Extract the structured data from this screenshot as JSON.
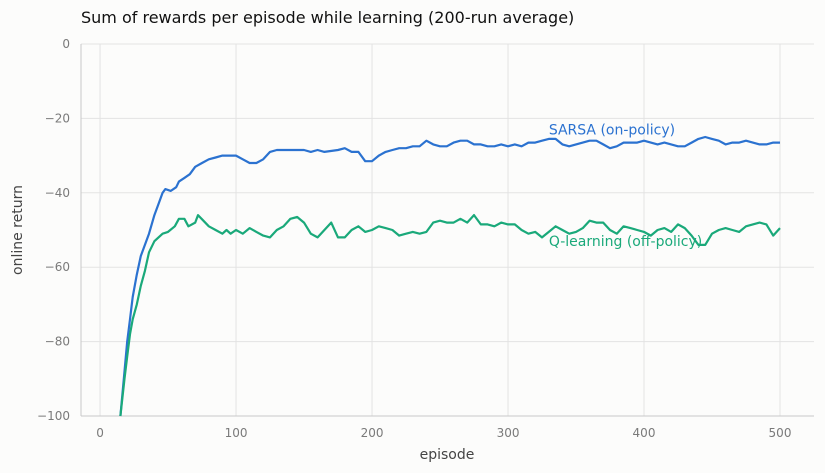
{
  "chart_data": {
    "type": "line",
    "title": "Sum of rewards per episode while learning (200-run average)",
    "xlabel": "episode",
    "ylabel": "online return",
    "xlim": [
      -14,
      525
    ],
    "ylim": [
      -100,
      0
    ],
    "xticks": [
      0,
      100,
      200,
      300,
      400,
      500
    ],
    "yticks": [
      0,
      -20,
      -40,
      -60,
      -80,
      -100
    ],
    "grid": true,
    "legend": "none",
    "annotations": [
      {
        "text": "SARSA (on-policy)",
        "series": "SARSA (on-policy)",
        "x": 330,
        "y": -23
      },
      {
        "text": "Q-learning (off-policy)",
        "series": "Q-learning (off-policy)",
        "x": 330,
        "y": -53
      }
    ],
    "series": [
      {
        "name": "SARSA (on-policy)",
        "color": "#2b72d0",
        "points": [
          [
            15,
            -100
          ],
          [
            18,
            -88
          ],
          [
            20,
            -80
          ],
          [
            22,
            -74
          ],
          [
            24,
            -68
          ],
          [
            27,
            -62
          ],
          [
            30,
            -57
          ],
          [
            33,
            -54
          ],
          [
            36,
            -51
          ],
          [
            40,
            -46
          ],
          [
            43,
            -43
          ],
          [
            46,
            -40
          ],
          [
            48,
            -39
          ],
          [
            52,
            -39.5
          ],
          [
            56,
            -38.5
          ],
          [
            58,
            -37
          ],
          [
            62,
            -36
          ],
          [
            66,
            -35
          ],
          [
            70,
            -33
          ],
          [
            75,
            -32
          ],
          [
            80,
            -31
          ],
          [
            85,
            -30.5
          ],
          [
            90,
            -30
          ],
          [
            95,
            -30
          ],
          [
            100,
            -30
          ],
          [
            105,
            -31
          ],
          [
            110,
            -32
          ],
          [
            115,
            -32
          ],
          [
            120,
            -31
          ],
          [
            125,
            -29
          ],
          [
            130,
            -28.5
          ],
          [
            140,
            -28.5
          ],
          [
            150,
            -28.5
          ],
          [
            155,
            -29
          ],
          [
            160,
            -28.5
          ],
          [
            165,
            -29
          ],
          [
            175,
            -28.5
          ],
          [
            180,
            -28
          ],
          [
            185,
            -29
          ],
          [
            190,
            -29
          ],
          [
            195,
            -31.5
          ],
          [
            200,
            -31.5
          ],
          [
            205,
            -30
          ],
          [
            210,
            -29
          ],
          [
            215,
            -28.5
          ],
          [
            220,
            -28
          ],
          [
            225,
            -28
          ],
          [
            230,
            -27.5
          ],
          [
            235,
            -27.5
          ],
          [
            240,
            -26
          ],
          [
            245,
            -27
          ],
          [
            250,
            -27.5
          ],
          [
            255,
            -27.5
          ],
          [
            260,
            -26.5
          ],
          [
            265,
            -26
          ],
          [
            270,
            -26
          ],
          [
            275,
            -27
          ],
          [
            280,
            -27
          ],
          [
            285,
            -27.5
          ],
          [
            290,
            -27.5
          ],
          [
            295,
            -27
          ],
          [
            300,
            -27.5
          ],
          [
            305,
            -27
          ],
          [
            310,
            -27.5
          ],
          [
            315,
            -26.5
          ],
          [
            320,
            -26.5
          ],
          [
            325,
            -26
          ],
          [
            330,
            -25.5
          ],
          [
            335,
            -25.5
          ],
          [
            340,
            -27
          ],
          [
            345,
            -27.5
          ],
          [
            350,
            -27
          ],
          [
            355,
            -26.5
          ],
          [
            360,
            -26
          ],
          [
            365,
            -26
          ],
          [
            370,
            -27
          ],
          [
            375,
            -28
          ],
          [
            380,
            -27.5
          ],
          [
            385,
            -26.5
          ],
          [
            390,
            -26.5
          ],
          [
            395,
            -26.5
          ],
          [
            400,
            -26
          ],
          [
            405,
            -26.5
          ],
          [
            410,
            -27
          ],
          [
            415,
            -26.5
          ],
          [
            420,
            -27
          ],
          [
            425,
            -27.5
          ],
          [
            430,
            -27.5
          ],
          [
            435,
            -26.5
          ],
          [
            440,
            -25.5
          ],
          [
            445,
            -25
          ],
          [
            450,
            -25.5
          ],
          [
            455,
            -26
          ],
          [
            460,
            -27
          ],
          [
            465,
            -26.5
          ],
          [
            470,
            -26.5
          ],
          [
            475,
            -26
          ],
          [
            480,
            -26.5
          ],
          [
            485,
            -27
          ],
          [
            490,
            -27
          ],
          [
            495,
            -26.5
          ],
          [
            500,
            -26.5
          ]
        ]
      },
      {
        "name": "Q-learning (off-policy)",
        "color": "#1aa97a",
        "points": [
          [
            15,
            -100
          ],
          [
            18,
            -90
          ],
          [
            20,
            -84
          ],
          [
            22,
            -78
          ],
          [
            24,
            -74
          ],
          [
            27,
            -70
          ],
          [
            30,
            -65
          ],
          [
            33,
            -61
          ],
          [
            36,
            -56
          ],
          [
            40,
            -53
          ],
          [
            43,
            -52
          ],
          [
            46,
            -51
          ],
          [
            50,
            -50.5
          ],
          [
            55,
            -49
          ],
          [
            58,
            -47
          ],
          [
            62,
            -47
          ],
          [
            65,
            -49
          ],
          [
            70,
            -48
          ],
          [
            72,
            -46
          ],
          [
            76,
            -47.5
          ],
          [
            80,
            -49
          ],
          [
            85,
            -50
          ],
          [
            90,
            -51
          ],
          [
            93,
            -50
          ],
          [
            96,
            -51
          ],
          [
            100,
            -50
          ],
          [
            105,
            -51
          ],
          [
            110,
            -49.5
          ],
          [
            115,
            -50.5
          ],
          [
            120,
            -51.5
          ],
          [
            125,
            -52
          ],
          [
            130,
            -50
          ],
          [
            135,
            -49
          ],
          [
            140,
            -47
          ],
          [
            145,
            -46.5
          ],
          [
            150,
            -48
          ],
          [
            155,
            -51
          ],
          [
            160,
            -52
          ],
          [
            165,
            -50
          ],
          [
            170,
            -48
          ],
          [
            175,
            -52
          ],
          [
            180,
            -52
          ],
          [
            185,
            -50
          ],
          [
            190,
            -49
          ],
          [
            195,
            -50.5
          ],
          [
            200,
            -50
          ],
          [
            205,
            -49
          ],
          [
            210,
            -49.5
          ],
          [
            215,
            -50
          ],
          [
            220,
            -51.5
          ],
          [
            225,
            -51
          ],
          [
            230,
            -50.5
          ],
          [
            235,
            -51
          ],
          [
            240,
            -50.5
          ],
          [
            245,
            -48
          ],
          [
            250,
            -47.5
          ],
          [
            255,
            -48
          ],
          [
            260,
            -48
          ],
          [
            265,
            -47
          ],
          [
            270,
            -48
          ],
          [
            275,
            -46
          ],
          [
            280,
            -48.5
          ],
          [
            285,
            -48.5
          ],
          [
            290,
            -49
          ],
          [
            295,
            -48
          ],
          [
            300,
            -48.5
          ],
          [
            305,
            -48.5
          ],
          [
            310,
            -50
          ],
          [
            315,
            -51
          ],
          [
            320,
            -50.5
          ],
          [
            325,
            -52
          ],
          [
            330,
            -50.5
          ],
          [
            335,
            -49
          ],
          [
            340,
            -50
          ],
          [
            345,
            -51
          ],
          [
            350,
            -50.5
          ],
          [
            355,
            -49.5
          ],
          [
            360,
            -47.5
          ],
          [
            365,
            -48
          ],
          [
            370,
            -48
          ],
          [
            375,
            -50
          ],
          [
            380,
            -51
          ],
          [
            385,
            -49
          ],
          [
            390,
            -49.5
          ],
          [
            395,
            -50
          ],
          [
            400,
            -50.5
          ],
          [
            405,
            -51.5
          ],
          [
            410,
            -50
          ],
          [
            415,
            -49.5
          ],
          [
            420,
            -50.5
          ],
          [
            425,
            -48.5
          ],
          [
            430,
            -49.5
          ],
          [
            435,
            -51.5
          ],
          [
            440,
            -54
          ],
          [
            445,
            -54
          ],
          [
            450,
            -51
          ],
          [
            455,
            -50
          ],
          [
            460,
            -49.5
          ],
          [
            465,
            -50
          ],
          [
            470,
            -50.5
          ],
          [
            475,
            -49
          ],
          [
            480,
            -48.5
          ],
          [
            485,
            -48
          ],
          [
            490,
            -48.5
          ],
          [
            495,
            -51.5
          ],
          [
            500,
            -49.5
          ]
        ]
      }
    ]
  }
}
